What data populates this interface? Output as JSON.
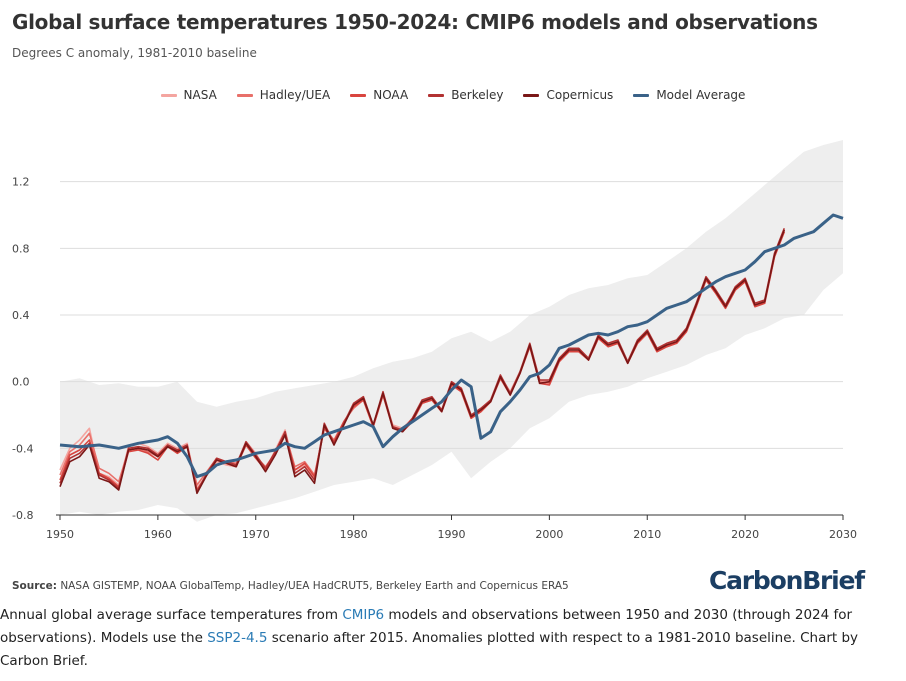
{
  "header": {
    "title": "Global surface temperatures 1950-2024: CMIP6 models and observations",
    "subtitle": "Degrees C anomaly, 1981-2010 baseline"
  },
  "legend": [
    {
      "label": "NASA",
      "color": "#f4a5a0"
    },
    {
      "label": "Hadley/UEA",
      "color": "#e8706a"
    },
    {
      "label": "NOAA",
      "color": "#d9453f"
    },
    {
      "label": "Berkeley",
      "color": "#b23232"
    },
    {
      "label": "Copernicus",
      "color": "#7a1717"
    },
    {
      "label": "Model Average",
      "color": "#3a6288"
    }
  ],
  "footer": {
    "source_label": "Source:",
    "source_text": " NASA GISTEMP, NOAA GlobalTemp, Hadley/UEA HadCRUT5, Berkeley Earth and Copernicus ERA5",
    "logo": "CarbonBrief",
    "caption_1": "Annual global average surface temperatures from ",
    "caption_link_1": "CMIP6",
    "caption_2": " models and observations between 1950 and 2030 (through 2024 for observations). Models use the ",
    "caption_link_2": "SSP2-4.5",
    "caption_3": " scenario after 2015. Anomalies plotted with respect to a 1981-2010 baseline. Chart by Carbon Brief."
  },
  "chart_data": {
    "type": "line",
    "title": "Global surface temperatures 1950-2024: CMIP6 models and observations",
    "subtitle": "Degrees C anomaly, 1981-2010 baseline",
    "xlim": [
      1950,
      2030
    ],
    "ylim": [
      -0.8,
      1.45
    ],
    "x_ticks": [
      1950,
      1960,
      1970,
      1980,
      1990,
      2000,
      2010,
      2020,
      2030
    ],
    "y_ticks": [
      -0.8,
      -0.4,
      0.0,
      0.4,
      0.8,
      1.2
    ],
    "y_tick_labels": [
      "-0.8",
      "-0.4",
      "0.0",
      "0.4",
      "0.8",
      "1.2"
    ],
    "grid": "horizontal",
    "legend_position": "top-center",
    "obs_x_start": 1950,
    "obs_series": [
      {
        "name": "NASA",
        "color": "#f4a5a0",
        "values": [
          -0.53,
          -0.4,
          -0.35,
          -0.28,
          -0.55,
          -0.57,
          -0.62,
          -0.39,
          -0.37,
          -0.39,
          -0.43,
          -0.37,
          -0.4,
          -0.37,
          -0.64,
          -0.56,
          -0.48,
          -0.5,
          -0.51,
          -0.36,
          -0.43,
          -0.53,
          -0.41,
          -0.29,
          -0.53,
          -0.5,
          -0.58,
          -0.26,
          -0.37,
          -0.25,
          -0.15,
          -0.09,
          -0.26,
          -0.07,
          -0.26,
          -0.28,
          -0.22,
          -0.12,
          -0.1,
          -0.17,
          -0.01,
          -0.04,
          -0.21,
          -0.17,
          -0.11,
          0.03,
          -0.06,
          0.06,
          0.22,
          0.01,
          0.0,
          0.14,
          0.2,
          0.2,
          0.14,
          0.27,
          0.22,
          0.24,
          0.12,
          0.24,
          0.3,
          0.19,
          0.22,
          0.24,
          0.31,
          0.46,
          0.62,
          0.54,
          0.45,
          0.56,
          0.61,
          0.47,
          0.49,
          0.76,
          0.91
        ]
      },
      {
        "name": "Hadley/UEA",
        "color": "#e8706a",
        "values": [
          -0.56,
          -0.42,
          -0.38,
          -0.31,
          -0.52,
          -0.55,
          -0.6,
          -0.41,
          -0.4,
          -0.42,
          -0.45,
          -0.39,
          -0.42,
          -0.39,
          -0.62,
          -0.54,
          -0.46,
          -0.48,
          -0.49,
          -0.38,
          -0.45,
          -0.51,
          -0.43,
          -0.31,
          -0.51,
          -0.48,
          -0.56,
          -0.28,
          -0.35,
          -0.24,
          -0.16,
          -0.11,
          -0.27,
          -0.08,
          -0.27,
          -0.29,
          -0.23,
          -0.13,
          -0.11,
          -0.18,
          -0.02,
          -0.05,
          -0.21,
          -0.18,
          -0.12,
          0.02,
          -0.07,
          0.05,
          0.21,
          0.0,
          -0.01,
          0.13,
          0.19,
          0.19,
          0.13,
          0.26,
          0.21,
          0.23,
          0.11,
          0.23,
          0.29,
          0.18,
          0.21,
          0.23,
          0.3,
          0.45,
          0.61,
          0.53,
          0.44,
          0.55,
          0.6,
          0.46,
          0.48,
          0.75,
          0.9
        ]
      },
      {
        "name": "NOAA",
        "color": "#d9453f",
        "values": [
          -0.59,
          -0.44,
          -0.41,
          -0.35,
          -0.55,
          -0.58,
          -0.63,
          -0.42,
          -0.41,
          -0.43,
          -0.47,
          -0.39,
          -0.43,
          -0.39,
          -0.65,
          -0.56,
          -0.47,
          -0.49,
          -0.51,
          -0.38,
          -0.46,
          -0.53,
          -0.43,
          -0.32,
          -0.53,
          -0.49,
          -0.57,
          -0.28,
          -0.36,
          -0.24,
          -0.15,
          -0.11,
          -0.27,
          -0.08,
          -0.28,
          -0.3,
          -0.24,
          -0.13,
          -0.11,
          -0.18,
          -0.02,
          -0.06,
          -0.22,
          -0.18,
          -0.12,
          0.02,
          -0.08,
          0.05,
          0.21,
          -0.01,
          -0.02,
          0.12,
          0.18,
          0.18,
          0.13,
          0.26,
          0.21,
          0.23,
          0.11,
          0.23,
          0.29,
          0.18,
          0.21,
          0.23,
          0.3,
          0.45,
          0.61,
          0.53,
          0.44,
          0.55,
          0.6,
          0.45,
          0.47,
          0.75,
          0.9
        ]
      },
      {
        "name": "Berkeley",
        "color": "#b23232",
        "values": [
          -0.61,
          -0.46,
          -0.43,
          -0.37,
          -0.56,
          -0.59,
          -0.64,
          -0.4,
          -0.39,
          -0.4,
          -0.44,
          -0.38,
          -0.41,
          -0.38,
          -0.66,
          -0.55,
          -0.46,
          -0.48,
          -0.5,
          -0.36,
          -0.44,
          -0.52,
          -0.42,
          -0.3,
          -0.55,
          -0.51,
          -0.59,
          -0.25,
          -0.37,
          -0.25,
          -0.13,
          -0.09,
          -0.26,
          -0.06,
          -0.27,
          -0.29,
          -0.22,
          -0.11,
          -0.09,
          -0.17,
          0.0,
          -0.04,
          -0.2,
          -0.16,
          -0.11,
          0.04,
          -0.07,
          0.06,
          0.23,
          0.01,
          0.01,
          0.14,
          0.2,
          0.2,
          0.14,
          0.28,
          0.23,
          0.25,
          0.12,
          0.25,
          0.31,
          0.2,
          0.23,
          0.25,
          0.32,
          0.47,
          0.63,
          0.55,
          0.46,
          0.57,
          0.62,
          0.47,
          0.49,
          0.77,
          0.92
        ]
      },
      {
        "name": "Copernicus",
        "color": "#7a1717",
        "values": [
          -0.63,
          -0.48,
          -0.45,
          -0.38,
          -0.58,
          -0.6,
          -0.65,
          -0.41,
          -0.4,
          -0.41,
          -0.45,
          -0.39,
          -0.42,
          -0.39,
          -0.67,
          -0.56,
          -0.47,
          -0.49,
          -0.51,
          -0.37,
          -0.45,
          -0.54,
          -0.44,
          -0.32,
          -0.57,
          -0.53,
          -0.61,
          -0.26,
          -0.38,
          -0.26,
          -0.14,
          -0.1,
          -0.26,
          -0.07,
          -0.28,
          -0.3,
          -0.23,
          -0.12,
          -0.1,
          -0.18,
          -0.01,
          -0.05,
          -0.21,
          -0.17,
          -0.12,
          0.03,
          -0.08,
          0.05,
          0.22,
          -0.01,
          0.0,
          0.13,
          0.19,
          0.19,
          0.13,
          0.27,
          0.22,
          0.24,
          0.11,
          0.24,
          0.3,
          0.19,
          0.22,
          0.24,
          0.31,
          0.46,
          0.62,
          0.54,
          0.45,
          0.56,
          0.61,
          0.46,
          0.48,
          0.76,
          0.91
        ]
      }
    ],
    "model_average": {
      "name": "Model Average",
      "color": "#3a6288",
      "x": [
        1950,
        1952,
        1954,
        1956,
        1958,
        1960,
        1961,
        1962,
        1963,
        1964,
        1965,
        1966,
        1967,
        1968,
        1969,
        1970,
        1971,
        1972,
        1973,
        1974,
        1975,
        1976,
        1977,
        1978,
        1979,
        1980,
        1981,
        1982,
        1983,
        1984,
        1985,
        1986,
        1987,
        1988,
        1989,
        1990,
        1991,
        1992,
        1993,
        1994,
        1995,
        1996,
        1997,
        1998,
        1999,
        2000,
        2001,
        2002,
        2003,
        2004,
        2005,
        2006,
        2007,
        2008,
        2009,
        2010,
        2011,
        2012,
        2013,
        2014,
        2015,
        2016,
        2017,
        2018,
        2019,
        2020,
        2021,
        2022,
        2023,
        2024,
        2025,
        2026,
        2027,
        2028,
        2029,
        2030
      ],
      "values": [
        -0.38,
        -0.39,
        -0.38,
        -0.4,
        -0.37,
        -0.35,
        -0.33,
        -0.37,
        -0.45,
        -0.57,
        -0.55,
        -0.5,
        -0.48,
        -0.47,
        -0.45,
        -0.43,
        -0.42,
        -0.41,
        -0.37,
        -0.39,
        -0.4,
        -0.36,
        -0.32,
        -0.3,
        -0.28,
        -0.26,
        -0.24,
        -0.27,
        -0.39,
        -0.33,
        -0.28,
        -0.24,
        -0.2,
        -0.16,
        -0.12,
        -0.05,
        0.01,
        -0.03,
        -0.34,
        -0.3,
        -0.18,
        -0.12,
        -0.05,
        0.03,
        0.05,
        0.1,
        0.2,
        0.22,
        0.25,
        0.28,
        0.29,
        0.28,
        0.3,
        0.33,
        0.34,
        0.36,
        0.4,
        0.44,
        0.46,
        0.48,
        0.52,
        0.56,
        0.6,
        0.63,
        0.65,
        0.67,
        0.72,
        0.78,
        0.8,
        0.82,
        0.86,
        0.88,
        0.9,
        0.95,
        1.0,
        0.98
      ]
    },
    "model_range": {
      "x": [
        1950,
        1952,
        1954,
        1956,
        1958,
        1960,
        1962,
        1964,
        1966,
        1968,
        1970,
        1972,
        1974,
        1976,
        1978,
        1980,
        1982,
        1984,
        1986,
        1988,
        1990,
        1992,
        1994,
        1996,
        1998,
        2000,
        2002,
        2004,
        2006,
        2008,
        2010,
        2012,
        2014,
        2016,
        2018,
        2020,
        2022,
        2024,
        2026,
        2028,
        2030
      ],
      "low": [
        -0.8,
        -0.78,
        -0.8,
        -0.78,
        -0.77,
        -0.74,
        -0.76,
        -0.84,
        -0.8,
        -0.79,
        -0.76,
        -0.73,
        -0.7,
        -0.66,
        -0.62,
        -0.6,
        -0.58,
        -0.62,
        -0.56,
        -0.5,
        -0.42,
        -0.58,
        -0.48,
        -0.4,
        -0.28,
        -0.22,
        -0.12,
        -0.08,
        -0.06,
        -0.03,
        0.02,
        0.06,
        0.1,
        0.16,
        0.2,
        0.28,
        0.32,
        0.38,
        0.4,
        0.55,
        0.65
      ],
      "high": [
        0.0,
        0.02,
        -0.02,
        -0.01,
        -0.03,
        -0.03,
        0.0,
        -0.12,
        -0.15,
        -0.12,
        -0.1,
        -0.06,
        -0.04,
        -0.02,
        0.0,
        0.03,
        0.08,
        0.12,
        0.14,
        0.18,
        0.26,
        0.3,
        0.24,
        0.3,
        0.4,
        0.45,
        0.52,
        0.56,
        0.58,
        0.62,
        0.64,
        0.72,
        0.8,
        0.9,
        0.98,
        1.08,
        1.18,
        1.28,
        1.38,
        1.42,
        1.45
      ]
    }
  }
}
